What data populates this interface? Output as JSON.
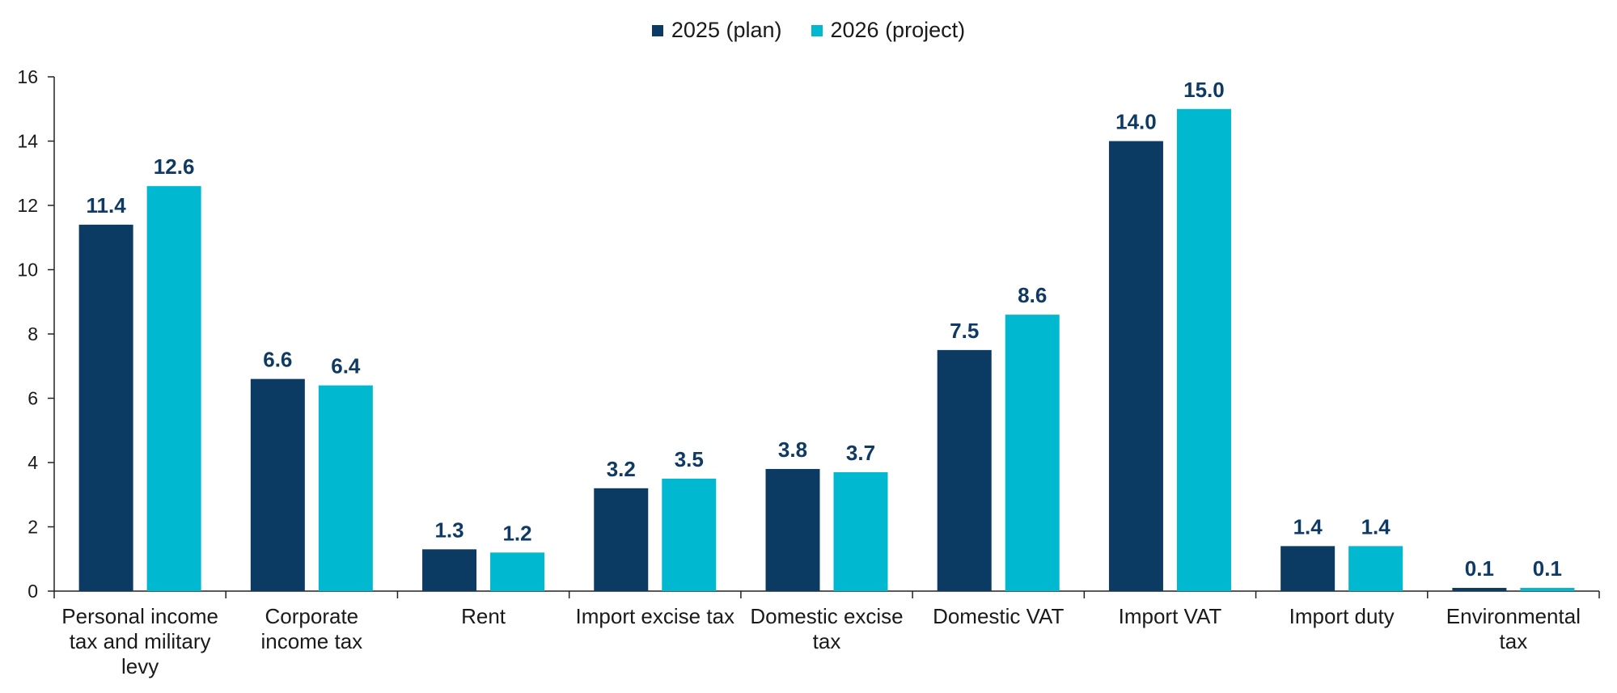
{
  "legend": {
    "series_1": "2025 (plan)",
    "series_2": "2026 (project)"
  },
  "colors": {
    "series_1": "#0b3a62",
    "series_2": "#00b8cf",
    "data_label": "#0f3a63",
    "axis": "#222222"
  },
  "chart_data": {
    "type": "bar",
    "categories": [
      [
        "Personal income",
        "tax and military",
        "levy"
      ],
      [
        "Corporate",
        "income tax"
      ],
      [
        "Rent"
      ],
      [
        "Import excise tax"
      ],
      [
        "Domestic excise",
        "tax"
      ],
      [
        "Domestic VAT"
      ],
      [
        "Import VAT"
      ],
      [
        "Import duty"
      ],
      [
        "Environmental",
        "tax"
      ]
    ],
    "series": [
      {
        "name": "2025 (plan)",
        "values": [
          11.4,
          6.6,
          1.3,
          3.2,
          3.8,
          7.5,
          14.0,
          1.4,
          0.1
        ]
      },
      {
        "name": "2026 (project)",
        "values": [
          12.6,
          6.4,
          1.2,
          3.5,
          3.7,
          8.6,
          15.0,
          1.4,
          0.1
        ]
      }
    ],
    "data_labels": [
      [
        "11.4",
        "6.6",
        "1.3",
        "3.2",
        "3.8",
        "7.5",
        "14.0",
        "1.4",
        "0.1"
      ],
      [
        "12.6",
        "6.4",
        "1.2",
        "3.5",
        "3.7",
        "8.6",
        "15.0",
        "1.4",
        "0.1"
      ]
    ],
    "ylim": [
      0,
      16
    ],
    "yticks": [
      0,
      2,
      4,
      6,
      8,
      10,
      12,
      14,
      16
    ],
    "grid": false,
    "legend_position": "top-center",
    "title": "",
    "xlabel": "",
    "ylabel": ""
  }
}
